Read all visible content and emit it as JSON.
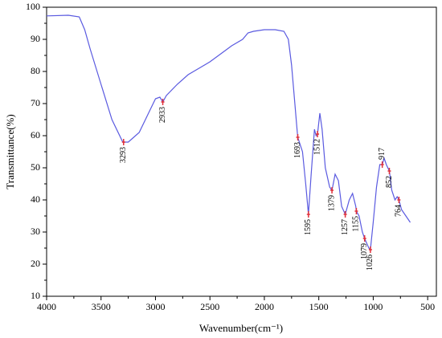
{
  "chart_data": {
    "type": "line",
    "xlabel": "Wavenumber(cm⁻¹)",
    "ylabel": "Transmittance(%)",
    "color": "#5a5ae0",
    "x": [
      4000,
      3800,
      3700,
      3650,
      3600,
      3500,
      3400,
      3300,
      3250,
      3150,
      3050,
      3000,
      2960,
      2933,
      2900,
      2800,
      2700,
      2600,
      2500,
      2400,
      2300,
      2200,
      2150,
      2100,
      2000,
      1900,
      1820,
      1780,
      1750,
      1720,
      1700,
      1693,
      1650,
      1620,
      1595,
      1570,
      1540,
      1525,
      1512,
      1490,
      1470,
      1440,
      1400,
      1379,
      1350,
      1320,
      1290,
      1257,
      1220,
      1190,
      1160,
      1155,
      1130,
      1100,
      1079,
      1060,
      1040,
      1026,
      1000,
      970,
      940,
      917,
      900,
      880,
      852,
      830,
      800,
      780,
      764,
      740,
      710,
      680,
      660
    ],
    "values": [
      97.3,
      97.5,
      97,
      93,
      87,
      76,
      65,
      58,
      58,
      61,
      68,
      71.5,
      72,
      70.5,
      72.5,
      76,
      79,
      81,
      83,
      85.5,
      88,
      90,
      92,
      92.5,
      93,
      93,
      92.5,
      90,
      82,
      70,
      62,
      59.5,
      55,
      45,
      35.5,
      48,
      62,
      60,
      60.5,
      67,
      62,
      50,
      44,
      43,
      48,
      46,
      38,
      35.5,
      40,
      42,
      38,
      36.5,
      35,
      30,
      28,
      26.5,
      25,
      24.5,
      33,
      44,
      51,
      51,
      53,
      51,
      49,
      43,
      40,
      41,
      40,
      37,
      35.5,
      34,
      33
    ],
    "annotations": [
      {
        "x": 3293,
        "y": 58
      },
      {
        "x": 2933,
        "y": 70.5
      },
      {
        "x": 1693,
        "y": 59.5
      },
      {
        "x": 1595,
        "y": 35.5
      },
      {
        "x": 1512,
        "y": 60.5
      },
      {
        "x": 1379,
        "y": 43
      },
      {
        "x": 1257,
        "y": 35.5
      },
      {
        "x": 1155,
        "y": 36.5
      },
      {
        "x": 1079,
        "y": 28
      },
      {
        "x": 1026,
        "y": 24.5
      },
      {
        "x": 917,
        "y": 51,
        "position": "above"
      },
      {
        "x": 852,
        "y": 49
      },
      {
        "x": 764,
        "y": 40
      }
    ],
    "marker_color": "#e0303a",
    "xlim": [
      4000,
      420
    ],
    "ylim": [
      10,
      100
    ],
    "xticks": [
      4000,
      3500,
      3000,
      2500,
      2000,
      1500,
      1000,
      500
    ],
    "yticks": [
      10,
      20,
      30,
      40,
      50,
      60,
      70,
      80,
      90,
      100
    ]
  }
}
